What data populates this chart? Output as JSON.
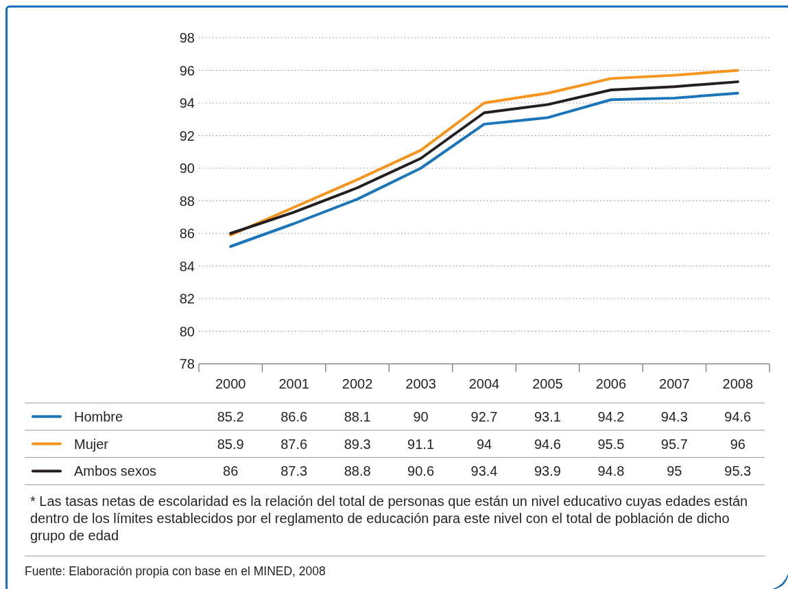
{
  "chart_data": {
    "type": "line",
    "categories": [
      "2000",
      "2001",
      "2002",
      "2003",
      "2004",
      "2005",
      "2006",
      "2007",
      "2008"
    ],
    "series": [
      {
        "name": "Hombre",
        "color": "#1b75bb",
        "values": [
          85.2,
          86.6,
          88.1,
          90,
          92.7,
          93.1,
          94.2,
          94.3,
          94.6
        ]
      },
      {
        "name": "Mujer",
        "color": "#f7941d",
        "values": [
          85.9,
          87.6,
          89.3,
          91.1,
          94,
          94.6,
          95.5,
          95.7,
          96
        ]
      },
      {
        "name": "Ambos sexos",
        "color": "#231f20",
        "values": [
          86,
          87.3,
          88.8,
          90.6,
          93.4,
          93.9,
          94.8,
          95,
          95.3
        ]
      }
    ],
    "ylim": [
      78,
      98
    ],
    "yticks": [
      78,
      80,
      82,
      84,
      86,
      88,
      90,
      92,
      94,
      96,
      98
    ],
    "grid": "y",
    "legend": "bottom",
    "data_labels": true,
    "marker": "none",
    "line_style": "solid",
    "annotations": [
      "*   Las tasas netas de escolaridad es la relación del total de personas que están un nivel educativo cuyas edades están dentro de los límites establecidos por el reglamento de educación para este nivel con el total de población de dicho grupo de edad",
      "Fuente: Elaboración propia con base en el MINED, 2008"
    ]
  }
}
